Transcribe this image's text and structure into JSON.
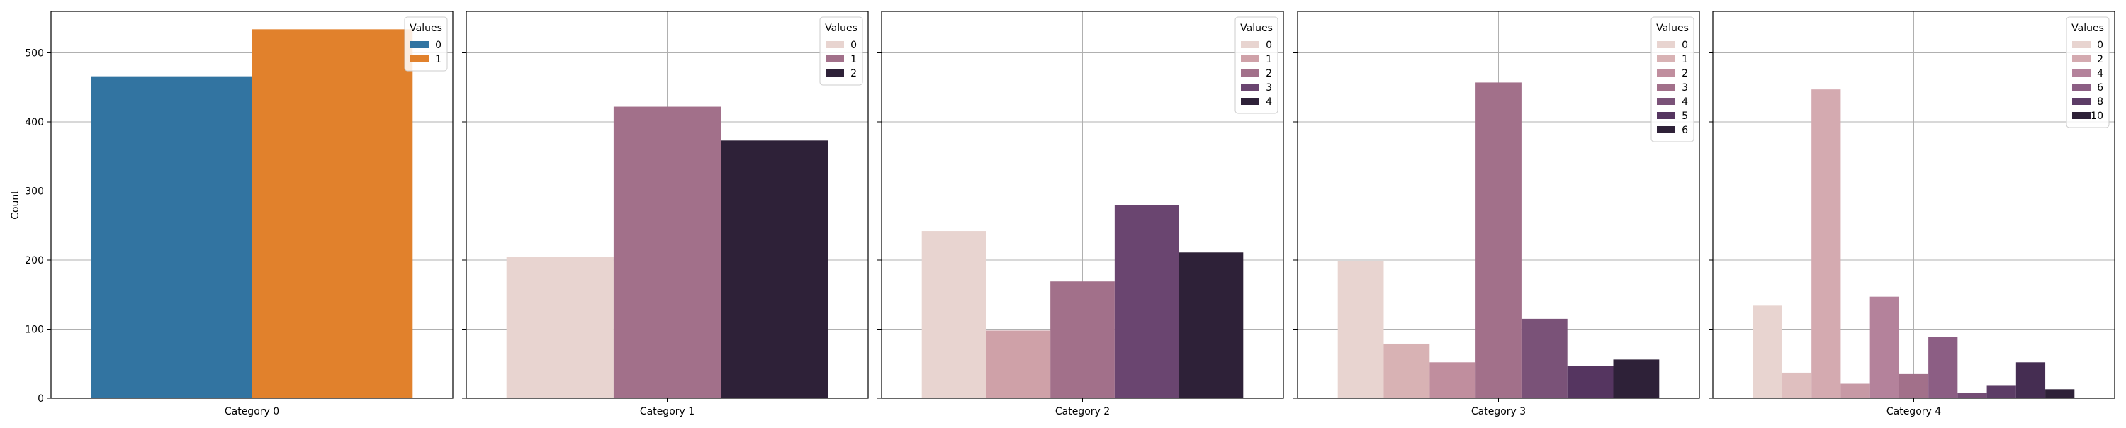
{
  "chart_data": {
    "type": "bar",
    "layout": "facets-1x5-shared-y",
    "ylabel": "Count",
    "ylim": [
      0,
      560
    ],
    "yticks": [
      0,
      100,
      200,
      300,
      400,
      500
    ],
    "grid": true,
    "legend_title": "Values",
    "legend_position": "top-right",
    "panels": [
      {
        "category": "Category 0",
        "legend_entries": [
          "0",
          "1"
        ],
        "bars": [
          {
            "value": "0",
            "count": 466,
            "color": "#3274a1"
          },
          {
            "value": "1",
            "count": 534,
            "color": "#e1812c"
          }
        ]
      },
      {
        "category": "Category 1",
        "legend_entries": [
          "0",
          "1",
          "2"
        ],
        "bars": [
          {
            "value": "0",
            "count": 205,
            "color": "#e8d4d0"
          },
          {
            "value": "1",
            "count": 422,
            "color": "#a2708a"
          },
          {
            "value": "2",
            "count": 373,
            "color": "#2e2138"
          }
        ]
      },
      {
        "category": "Category 2",
        "legend_entries": [
          "0",
          "1",
          "2",
          "3",
          "4"
        ],
        "bars": [
          {
            "value": "0",
            "count": 242,
            "color": "#e8d4d0"
          },
          {
            "value": "1",
            "count": 98,
            "color": "#cfa1a8"
          },
          {
            "value": "2",
            "count": 169,
            "color": "#a2708a"
          },
          {
            "value": "3",
            "count": 280,
            "color": "#6a4570"
          },
          {
            "value": "4",
            "count": 211,
            "color": "#2e2138"
          }
        ]
      },
      {
        "category": "Category 3",
        "legend_entries": [
          "0",
          "1",
          "2",
          "3",
          "4",
          "5",
          "6"
        ],
        "bars": [
          {
            "value": "0",
            "count": 198,
            "color": "#e8d4d0"
          },
          {
            "value": "1",
            "count": 79,
            "color": "#d8b2b4"
          },
          {
            "value": "2",
            "count": 52,
            "color": "#c08e9e"
          },
          {
            "value": "3",
            "count": 457,
            "color": "#a2708a"
          },
          {
            "value": "4",
            "count": 115,
            "color": "#7a5278"
          },
          {
            "value": "5",
            "count": 47,
            "color": "#553560"
          },
          {
            "value": "6",
            "count": 56,
            "color": "#2e2138"
          }
        ]
      },
      {
        "category": "Category 4",
        "legend_entries": [
          "0",
          "2",
          "4",
          "6",
          "8",
          "10"
        ],
        "bars": [
          {
            "value": "0",
            "count": 134,
            "color": "#e8d4d0"
          },
          {
            "value": "1",
            "count": 37,
            "color": "#dfbfbf"
          },
          {
            "value": "2",
            "count": 447,
            "color": "#d4aab0"
          },
          {
            "value": "3",
            "count": 21,
            "color": "#c799a5"
          },
          {
            "value": "4",
            "count": 147,
            "color": "#b4829b"
          },
          {
            "value": "5",
            "count": 35,
            "color": "#a2708a"
          },
          {
            "value": "6",
            "count": 89,
            "color": "#8c5e84"
          },
          {
            "value": "7",
            "count": 8,
            "color": "#744d75"
          },
          {
            "value": "8",
            "count": 18,
            "color": "#5c3c66"
          },
          {
            "value": "9",
            "count": 52,
            "color": "#452d52"
          },
          {
            "value": "10",
            "count": 13,
            "color": "#2e2138"
          }
        ],
        "legend_colors": [
          "#e8d4d0",
          "#d4aab0",
          "#b4829b",
          "#8c5e84",
          "#5c3c66",
          "#2e2138"
        ]
      }
    ]
  }
}
